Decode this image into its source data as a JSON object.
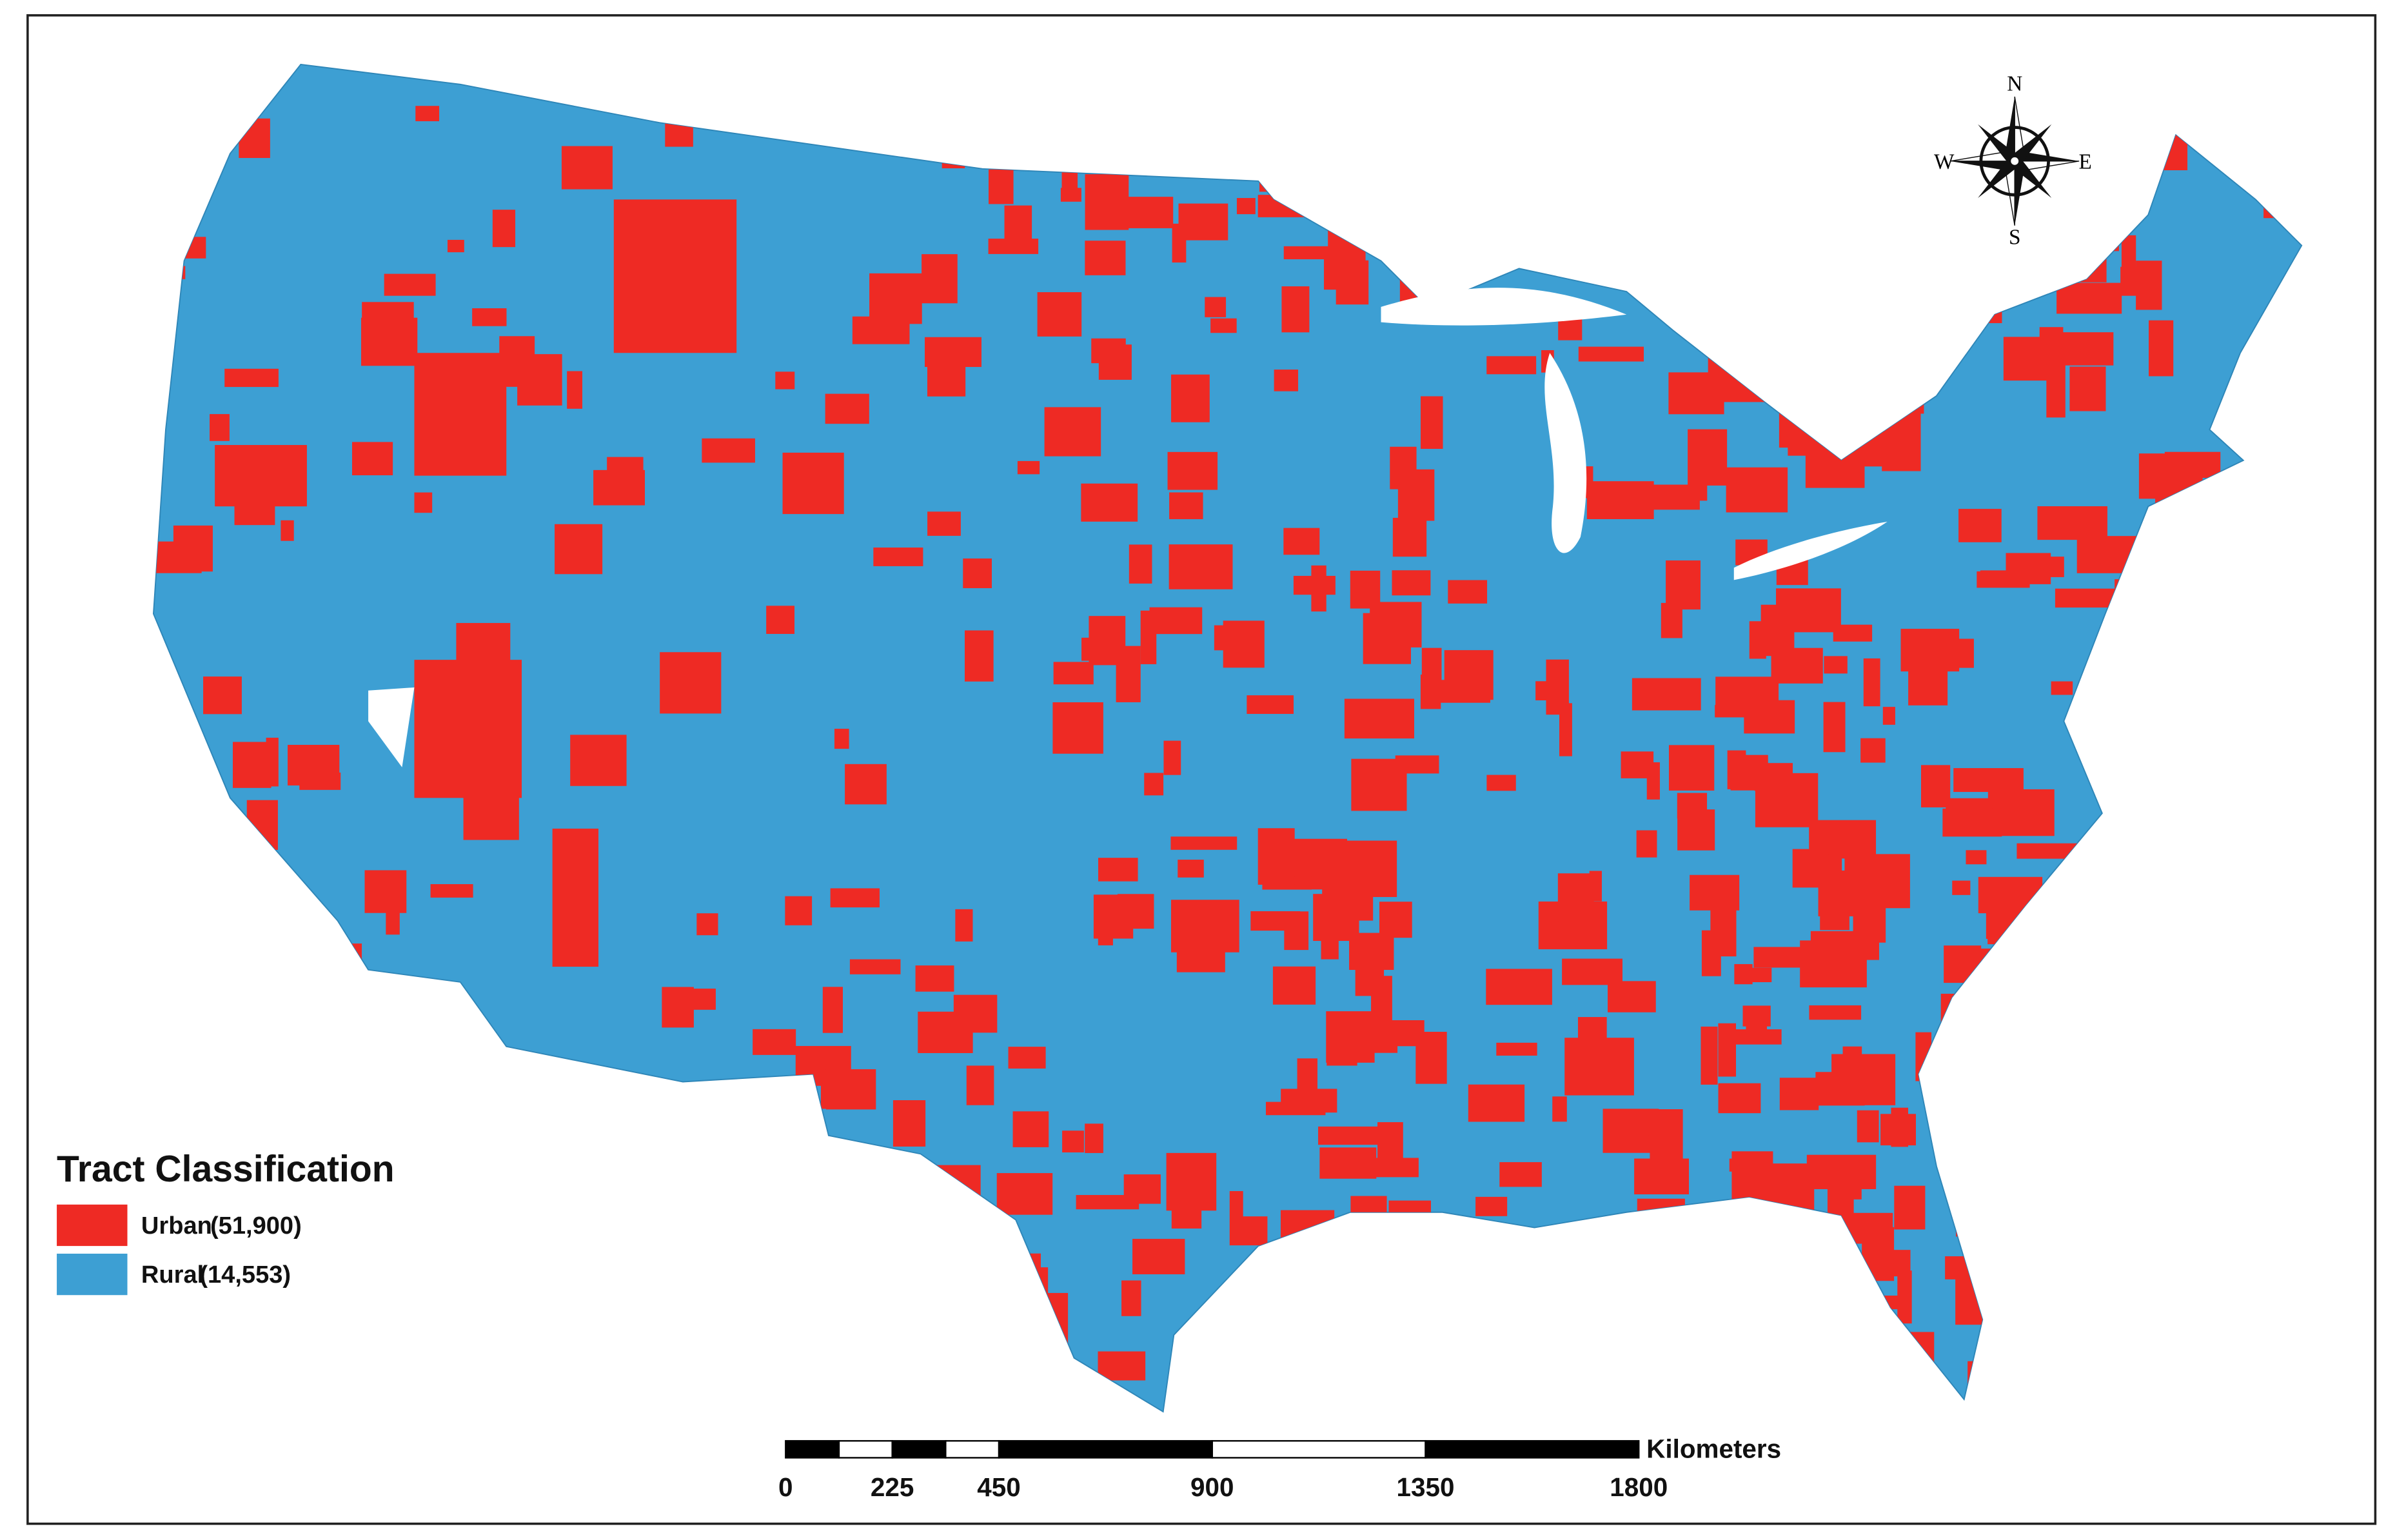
{
  "legend": {
    "title": "Tract Classification",
    "items": [
      {
        "name": "Urban",
        "count": "(51,900)",
        "color": "#ee2a24"
      },
      {
        "name": "Rural",
        "count": "(14,553)",
        "color": "#3d9fd3"
      }
    ]
  },
  "scale_bar": {
    "unit": "Kilometers",
    "ticks": [
      0,
      225,
      450,
      900,
      1350,
      1800
    ]
  },
  "compass": {
    "north": "N",
    "east": "E",
    "south": "S",
    "west": "W"
  }
}
